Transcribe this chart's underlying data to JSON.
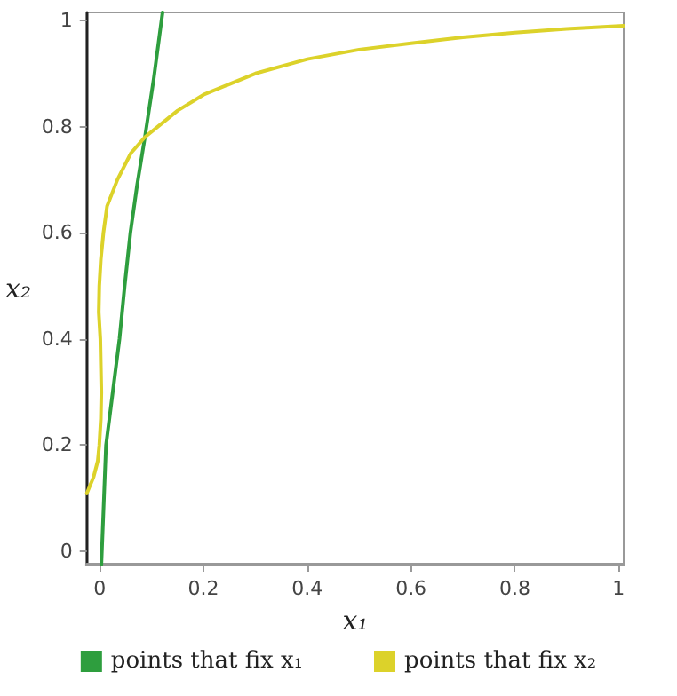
{
  "chart_data": {
    "type": "line",
    "xlabel": "x₁",
    "ylabel": "x₂",
    "xlim": [
      -0.025,
      1.01
    ],
    "ylim": [
      -0.025,
      1.015
    ],
    "xticks": [
      0,
      0.2,
      0.4,
      0.6,
      0.8,
      1
    ],
    "yticks": [
      0,
      0.2,
      0.4,
      0.6,
      0.8,
      1
    ],
    "grid": false,
    "legend": "bottom",
    "marker": "none",
    "line_style": "solid",
    "series": [
      {
        "name": "points that fix x₁",
        "color": "#2e9e3e",
        "x": [
          0.003,
          0.004,
          0.012,
          0.025,
          0.038,
          0.048,
          0.059,
          0.072,
          0.087,
          0.104,
          0.121
        ],
        "values": [
          -0.025,
          0,
          0.2,
          0.3,
          0.4,
          0.5,
          0.6,
          0.69,
          0.78,
          0.89,
          1.015
        ]
      },
      {
        "name": "points that fix x₂",
        "color": "#dcd22a",
        "x": [
          -0.025,
          -0.012,
          -0.004,
          -0.001,
          0.002,
          0.003,
          0.002,
          0.001,
          -0.002,
          -0.001,
          0.002,
          0.007,
          0.014,
          0.034,
          0.06,
          0.087,
          0.112,
          0.15,
          0.2,
          0.3,
          0.4,
          0.5,
          0.6,
          0.7,
          0.8,
          0.9,
          1.01
        ],
        "values": [
          0.109,
          0.14,
          0.17,
          0.2,
          0.25,
          0.3,
          0.35,
          0.4,
          0.45,
          0.5,
          0.55,
          0.6,
          0.65,
          0.7,
          0.75,
          0.78,
          0.8,
          0.83,
          0.86,
          0.9,
          0.927,
          0.945,
          0.957,
          0.968,
          0.977,
          0.984,
          0.99
        ]
      }
    ]
  }
}
